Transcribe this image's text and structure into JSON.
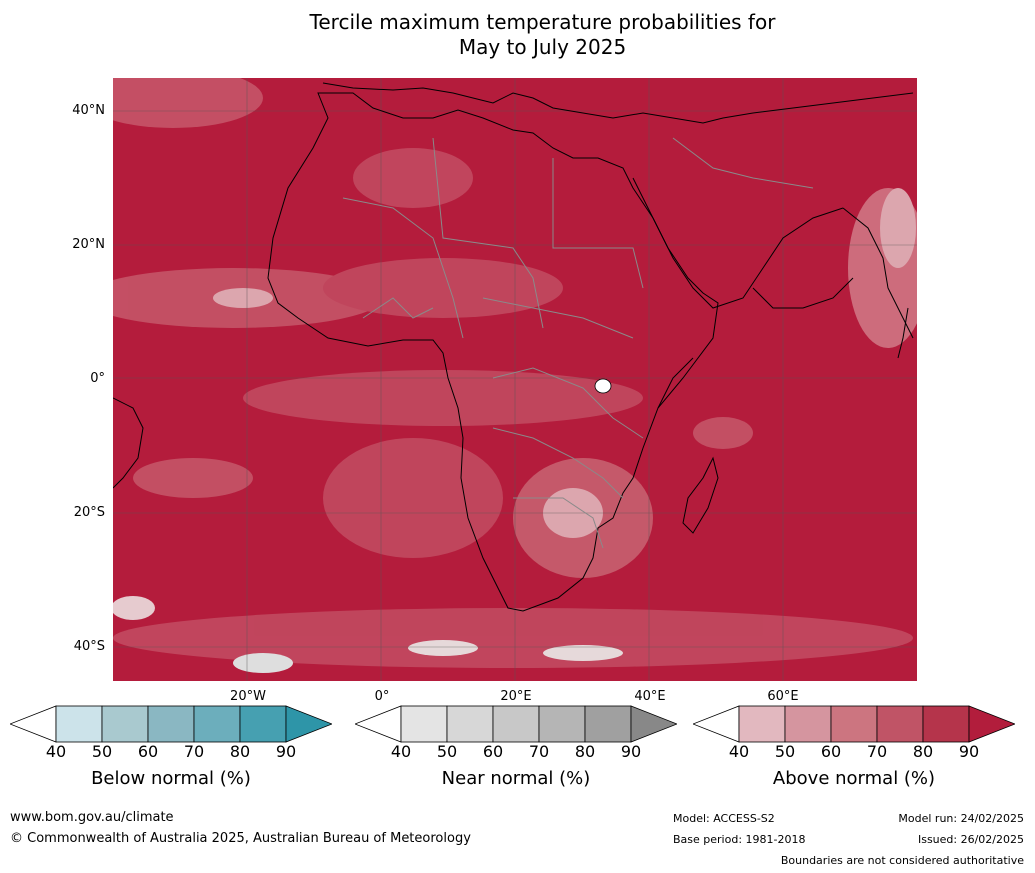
{
  "title": {
    "line1": "Tercile maximum temperature probabilities for",
    "line2": "May to July 2025"
  },
  "map": {
    "lat_labels": [
      "40°N",
      "20°N",
      "0°",
      "20°S",
      "40°S"
    ],
    "lon_labels": [
      "20°W",
      "0°",
      "20°E",
      "40°E",
      "60°E"
    ],
    "background_color": "#b41c3c",
    "land_border_color": "#000000",
    "country_border_color": "#8a8a8a",
    "gridline_color": "#555555"
  },
  "colorbars": [
    {
      "title": "Below normal (%)",
      "ticks": [
        "40",
        "50",
        "60",
        "70",
        "80",
        "90"
      ],
      "colors": [
        "#ffffff",
        "#cce3ea",
        "#a9c9cf",
        "#8ab7c2",
        "#6caebc",
        "#46a0b1",
        "#2e95a8"
      ]
    },
    {
      "title": "Near normal (%)",
      "ticks": [
        "40",
        "50",
        "60",
        "70",
        "80",
        "90"
      ],
      "colors": [
        "#ffffff",
        "#e4e4e4",
        "#d7d7d7",
        "#c8c8c8",
        "#b5b5b5",
        "#a0a0a0",
        "#888888"
      ]
    },
    {
      "title": "Above normal (%)",
      "ticks": [
        "40",
        "50",
        "60",
        "70",
        "80",
        "90"
      ],
      "colors": [
        "#ffffff",
        "#e2b8bf",
        "#d5959f",
        "#cc7580",
        "#c05466",
        "#b5344b",
        "#b21d3c"
      ]
    }
  ],
  "footer": {
    "url": "www.bom.gov.au/climate",
    "copyright": "© Commonwealth of Australia 2025, Australian Bureau of Meteorology",
    "model": "Model: ACCESS-S2",
    "base_period": "Base period: 1981-2018",
    "model_run": "Model run: 24/02/2025",
    "issued": "Issued: 26/02/2025",
    "disclaimer": "Boundaries are not considered authoritative"
  }
}
